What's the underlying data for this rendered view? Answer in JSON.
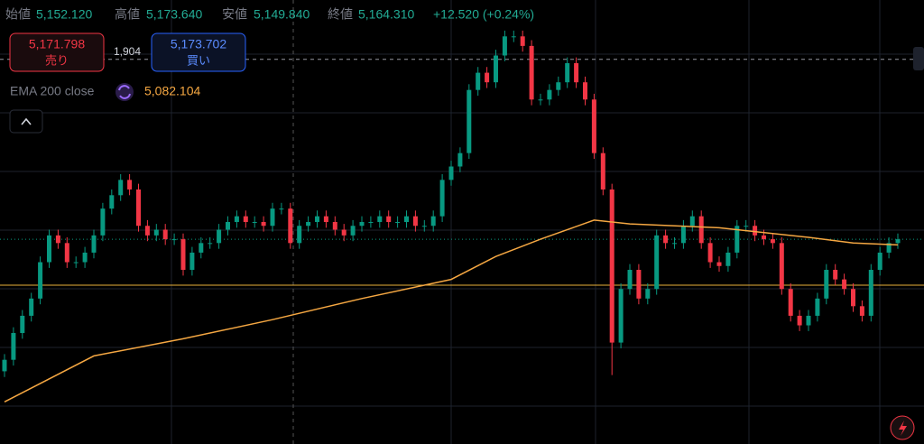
{
  "header": {
    "open_label": "始値",
    "open": "5,152.120",
    "high_label": "高値",
    "high": "5,173.640",
    "low_label": "安値",
    "low": "5,149.840",
    "close_label": "終値",
    "close": "5,164.310",
    "change": "+12.520 (+0.24%)"
  },
  "trade_panel": {
    "sell_price": "5,171.798",
    "sell_label": "売り",
    "spread": "1,904",
    "buy_price": "5,173.702",
    "buy_label": "買い"
  },
  "indicator": {
    "name": "EMA 200 close",
    "value": "5,082.104"
  },
  "chart_data": {
    "type": "candlestick",
    "up_color": "#089981",
    "down_color": "#f23645",
    "ylim": [
      5153.6,
      5176.8
    ],
    "open": [
      5157.4,
      5158.0,
      5159.4,
      5160.3,
      5161.2,
      5163.1,
      5164.5,
      5164.1,
      5163.1,
      5163.1,
      5163.6,
      5164.5,
      5165.9,
      5166.6,
      5167.4,
      5166.9,
      5165.0,
      5164.5,
      5164.8,
      5164.3,
      5164.3,
      5162.7,
      5163.6,
      5164.1,
      5164.1,
      5164.8,
      5165.2,
      5165.5,
      5165.2,
      5165.2,
      5165.0,
      5165.9,
      5165.9,
      5164.1,
      5165.0,
      5165.2,
      5165.5,
      5165.2,
      5164.8,
      5164.5,
      5165.0,
      5165.2,
      5165.2,
      5165.5,
      5165.2,
      5165.2,
      5165.5,
      5165.0,
      5165.0,
      5165.5,
      5167.4,
      5168.1,
      5168.8,
      5172.1,
      5173.0,
      5172.5,
      5173.9,
      5174.9,
      5174.9,
      5174.4,
      5171.6,
      5171.6,
      5172.1,
      5172.5,
      5173.5,
      5172.5,
      5171.6,
      5168.8,
      5166.9,
      5158.9,
      5161.7,
      5162.7,
      5161.2,
      5161.7,
      5164.5,
      5164.1,
      5164.1,
      5165.0,
      5165.5,
      5164.1,
      5163.1,
      5162.9,
      5163.6,
      5165.0,
      5165.0,
      5164.5,
      5164.3,
      5164.1,
      5161.7,
      5160.3,
      5159.8,
      5160.3,
      5161.2,
      5162.7,
      5162.2,
      5161.7,
      5160.8,
      5160.3,
      5162.7,
      5163.6,
      5164.1
    ],
    "high": [
      5158.3,
      5159.7,
      5160.6,
      5161.5,
      5163.4,
      5164.8,
      5164.8,
      5164.4,
      5163.4,
      5163.9,
      5164.8,
      5166.2,
      5166.9,
      5167.7,
      5167.7,
      5167.2,
      5165.3,
      5165.1,
      5165.1,
      5164.6,
      5164.6,
      5163.9,
      5164.4,
      5164.4,
      5165.1,
      5165.5,
      5165.8,
      5165.8,
      5165.5,
      5165.5,
      5166.2,
      5166.2,
      5166.2,
      5165.3,
      5165.5,
      5165.8,
      5165.8,
      5165.5,
      5165.1,
      5165.3,
      5165.5,
      5165.5,
      5165.8,
      5165.8,
      5165.5,
      5165.8,
      5165.8,
      5165.3,
      5165.8,
      5167.7,
      5168.4,
      5169.1,
      5172.4,
      5173.3,
      5173.3,
      5174.2,
      5175.2,
      5175.2,
      5175.2,
      5174.7,
      5171.9,
      5172.4,
      5172.8,
      5173.8,
      5173.8,
      5172.8,
      5171.9,
      5169.1,
      5167.2,
      5162.0,
      5163.0,
      5163.0,
      5162.0,
      5164.8,
      5164.8,
      5164.4,
      5165.3,
      5165.8,
      5165.8,
      5164.4,
      5163.4,
      5163.9,
      5165.3,
      5165.3,
      5165.3,
      5164.8,
      5164.6,
      5164.4,
      5162.0,
      5160.6,
      5160.6,
      5161.5,
      5163.0,
      5163.0,
      5162.5,
      5162.0,
      5161.1,
      5163.0,
      5163.9,
      5164.4,
      5164.6
    ],
    "low": [
      5157.1,
      5157.7,
      5159.1,
      5160.0,
      5160.9,
      5162.8,
      5163.8,
      5162.8,
      5162.8,
      5162.8,
      5163.3,
      5164.2,
      5165.6,
      5166.3,
      5166.6,
      5164.7,
      5164.2,
      5164.2,
      5164.0,
      5164.0,
      5162.4,
      5162.4,
      5163.3,
      5163.8,
      5163.8,
      5164.5,
      5164.9,
      5164.9,
      5164.9,
      5164.7,
      5164.7,
      5165.6,
      5163.8,
      5163.8,
      5164.7,
      5164.9,
      5164.9,
      5164.5,
      5164.2,
      5164.2,
      5164.7,
      5164.9,
      5164.9,
      5164.9,
      5164.9,
      5164.9,
      5164.7,
      5164.7,
      5164.7,
      5165.2,
      5167.1,
      5167.8,
      5168.5,
      5171.8,
      5172.2,
      5172.2,
      5173.6,
      5174.6,
      5174.1,
      5171.3,
      5171.3,
      5171.3,
      5171.8,
      5172.2,
      5172.2,
      5171.3,
      5168.5,
      5166.6,
      5157.2,
      5158.6,
      5161.4,
      5160.9,
      5160.9,
      5161.4,
      5163.8,
      5163.8,
      5163.8,
      5164.7,
      5163.8,
      5162.8,
      5162.6,
      5162.6,
      5163.3,
      5164.7,
      5164.2,
      5164.0,
      5163.8,
      5161.4,
      5160.0,
      5159.5,
      5159.5,
      5160.0,
      5160.9,
      5161.9,
      5161.4,
      5160.5,
      5160.0,
      5160.0,
      5162.4,
      5163.3,
      5163.8
    ],
    "close": [
      5158.0,
      5159.4,
      5160.3,
      5161.2,
      5163.1,
      5164.5,
      5164.1,
      5163.1,
      5163.1,
      5163.6,
      5164.5,
      5165.9,
      5166.6,
      5167.4,
      5166.9,
      5165.0,
      5164.5,
      5164.8,
      5164.3,
      5164.3,
      5162.7,
      5163.6,
      5164.1,
      5164.1,
      5164.8,
      5165.2,
      5165.5,
      5165.2,
      5165.2,
      5165.0,
      5165.9,
      5165.9,
      5164.1,
      5165.0,
      5165.2,
      5165.5,
      5165.2,
      5164.8,
      5164.5,
      5165.0,
      5165.2,
      5165.2,
      5165.5,
      5165.2,
      5165.2,
      5165.5,
      5165.0,
      5165.0,
      5165.5,
      5167.4,
      5168.1,
      5168.8,
      5172.1,
      5173.0,
      5172.5,
      5173.9,
      5174.9,
      5174.9,
      5174.4,
      5171.6,
      5171.6,
      5172.1,
      5172.5,
      5173.5,
      5172.5,
      5171.6,
      5168.8,
      5166.9,
      5158.9,
      5161.7,
      5162.7,
      5161.2,
      5161.7,
      5164.5,
      5164.1,
      5164.1,
      5165.0,
      5165.5,
      5164.1,
      5163.1,
      5162.9,
      5163.6,
      5165.0,
      5165.0,
      5164.5,
      5164.3,
      5164.1,
      5161.7,
      5160.3,
      5159.8,
      5160.3,
      5161.2,
      5162.7,
      5162.2,
      5161.7,
      5160.8,
      5160.3,
      5162.7,
      5163.6,
      5164.1,
      5164.3
    ],
    "ema": {
      "color": "#f5a742",
      "x": [
        0,
        10,
        20,
        30,
        40,
        50,
        55,
        60,
        66,
        70,
        80,
        90,
        95,
        100
      ],
      "values": [
        5155.8,
        5158.2,
        5159.1,
        5160.1,
        5161.2,
        5162.2,
        5163.4,
        5164.3,
        5165.3,
        5165.1,
        5164.9,
        5164.4,
        5164.1,
        5164.0
      ]
    },
    "price_lines": [
      {
        "value": 5173.7,
        "color": "#9598a1",
        "dash": "4 4"
      },
      {
        "value": 5164.3,
        "color": "#089981",
        "dash": "1 3"
      },
      {
        "value": 5161.9,
        "color": "#e8b13a",
        "dash": "none"
      }
    ]
  }
}
